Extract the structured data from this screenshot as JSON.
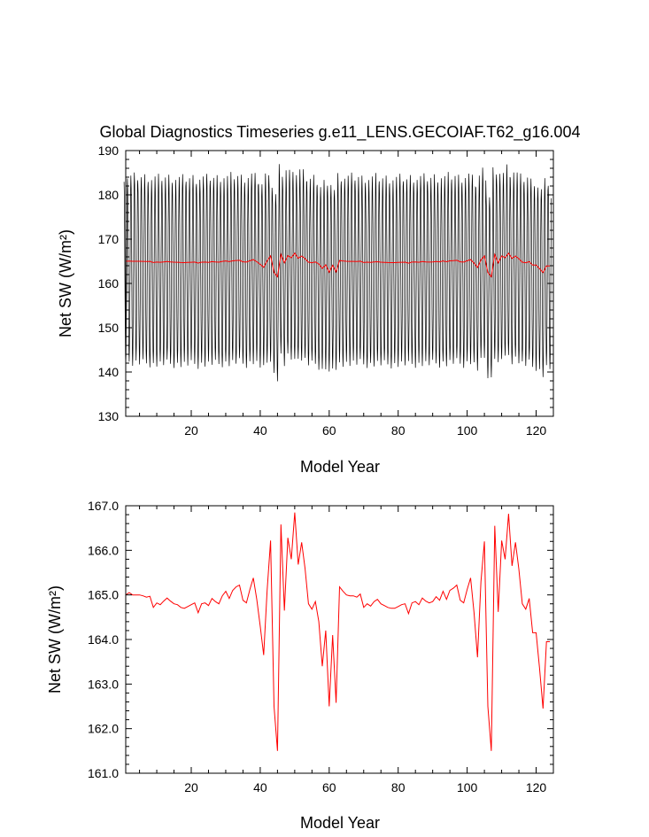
{
  "chart_data": [
    {
      "type": "line",
      "title": "Global Diagnostics Timeseries g.e11_LENS.GECOIAF.T62_g16.004",
      "xlabel": "Model Year",
      "ylabel": "Net SW (W/m²)",
      "xlim": [
        1,
        125
      ],
      "ylim": [
        130,
        190
      ],
      "xticks": [
        20,
        40,
        60,
        80,
        100,
        120
      ],
      "yticks": [
        130,
        140,
        150,
        160,
        170,
        180,
        190
      ],
      "ytick_labels": [
        "130",
        "140",
        "150",
        "160",
        "170",
        "180",
        "190"
      ],
      "monthly_amplitude": {
        "note": "monthly series oscillates each year between a seasonal min and max around the annual mean",
        "typical_max": 184,
        "typical_min": 142
      },
      "series": [
        {
          "color": "#000000",
          "resolution": "monthly"
        },
        {
          "color": "#ff0000",
          "resolution": "annual mean"
        }
      ]
    },
    {
      "type": "line",
      "xlabel": "Model Year",
      "ylabel": "Net SW (W/m²)",
      "xlim": [
        1,
        125
      ],
      "ylim": [
        161.0,
        167.0
      ],
      "xticks": [
        20,
        40,
        60,
        80,
        100,
        120
      ],
      "yticks": [
        161.0,
        162.0,
        163.0,
        164.0,
        165.0,
        166.0,
        167.0
      ],
      "ytick_labels": [
        "161.0",
        "162.0",
        "163.0",
        "164.0",
        "165.0",
        "166.0",
        "167.0"
      ],
      "series": [
        {
          "color": "#ff0000",
          "x": [
            1,
            2,
            3,
            4,
            5,
            6,
            7,
            8,
            9,
            10,
            11,
            12,
            13,
            14,
            15,
            16,
            17,
            18,
            19,
            20,
            21,
            22,
            23,
            24,
            25,
            26,
            27,
            28,
            29,
            30,
            31,
            32,
            33,
            34,
            35,
            36,
            37,
            38,
            39,
            40,
            41,
            42,
            43,
            44,
            45,
            46,
            47,
            48,
            49,
            50,
            51,
            52,
            53,
            54,
            55,
            56,
            57,
            58,
            59,
            60,
            61,
            62,
            63,
            64,
            65,
            66,
            67,
            68,
            69,
            70,
            71,
            72,
            73,
            74,
            75,
            76,
            77,
            78,
            79,
            80,
            81,
            82,
            83,
            84,
            85,
            86,
            87,
            88,
            89,
            90,
            91,
            92,
            93,
            94,
            95,
            96,
            97,
            98,
            99,
            100,
            101,
            102,
            103,
            104,
            105,
            106,
            107,
            108,
            109,
            110,
            111,
            112,
            113,
            114,
            115,
            116,
            117,
            118,
            119,
            120,
            121,
            122,
            123,
            124
          ],
          "values": [
            165.0,
            165.05,
            165.0,
            165.0,
            165.0,
            164.98,
            164.95,
            164.97,
            164.72,
            164.82,
            164.78,
            164.86,
            164.93,
            164.86,
            164.8,
            164.78,
            164.72,
            164.7,
            164.74,
            164.78,
            164.82,
            164.6,
            164.8,
            164.82,
            164.76,
            164.92,
            164.85,
            164.8,
            164.98,
            165.08,
            164.92,
            165.1,
            165.18,
            165.22,
            164.88,
            164.82,
            165.12,
            165.38,
            164.9,
            164.3,
            163.65,
            165.1,
            166.22,
            162.5,
            161.5,
            166.58,
            164.65,
            166.28,
            165.8,
            166.85,
            165.68,
            166.18,
            165.6,
            164.8,
            164.68,
            164.85,
            164.4,
            163.4,
            164.2,
            162.5,
            164.1,
            162.58,
            165.18,
            165.08,
            165.0,
            164.98,
            164.98,
            164.95,
            165.02,
            164.72,
            164.8,
            164.75,
            164.85,
            164.9,
            164.8,
            164.76,
            164.72,
            164.7,
            164.7,
            164.74,
            164.78,
            164.8,
            164.58,
            164.82,
            164.85,
            164.78,
            164.93,
            164.86,
            164.82,
            164.85,
            164.96,
            164.88,
            165.08,
            164.9,
            165.1,
            165.15,
            165.22,
            164.88,
            164.82,
            165.12,
            165.38,
            164.6,
            163.6,
            165.3,
            166.2,
            162.5,
            161.5,
            166.55,
            164.62,
            166.22,
            165.8,
            166.82,
            165.65,
            166.18,
            165.58,
            164.8,
            164.68,
            164.92,
            164.15,
            164.15,
            163.35,
            162.45,
            163.95,
            163.95
          ]
        }
      ]
    }
  ]
}
